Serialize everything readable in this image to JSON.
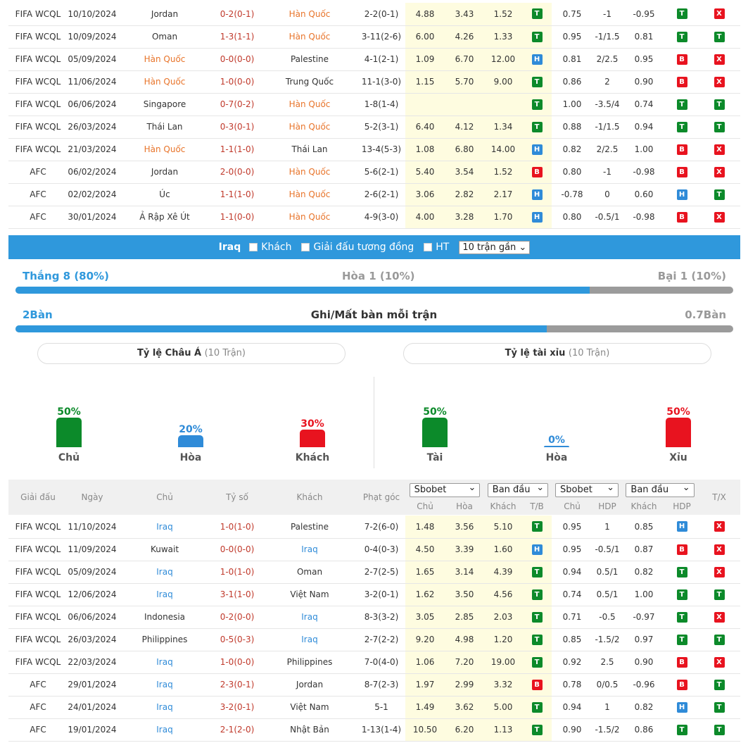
{
  "korea_matches": [
    {
      "league": "FIFA WCQL",
      "date": "10/10/2024",
      "home": "Jordan",
      "home_hl": false,
      "score": "0-2(0-1)",
      "away": "Hàn Quốc",
      "away_hl": true,
      "corner": "2-2(0-1)",
      "o1": "4.88",
      "o2": "3.43",
      "o3": "1.52",
      "tb": "T",
      "ahc": "0.75",
      "hdp": "-1",
      "ahk": "-0.95",
      "ah": "T",
      "ou": "X"
    },
    {
      "league": "FIFA WCQL",
      "date": "10/09/2024",
      "home": "Oman",
      "home_hl": false,
      "score": "1-3(1-1)",
      "away": "Hàn Quốc",
      "away_hl": true,
      "corner": "3-11(2-6)",
      "o1": "6.00",
      "o2": "4.26",
      "o3": "1.33",
      "tb": "T",
      "ahc": "0.95",
      "hdp": "-1/1.5",
      "ahk": "0.81",
      "ah": "T",
      "ou": "T"
    },
    {
      "league": "FIFA WCQL",
      "date": "05/09/2024",
      "home": "Hàn Quốc",
      "home_hl": true,
      "score": "0-0(0-0)",
      "away": "Palestine",
      "away_hl": false,
      "corner": "4-1(2-1)",
      "o1": "1.09",
      "o2": "6.70",
      "o3": "12.00",
      "tb": "H",
      "ahc": "0.81",
      "hdp": "2/2.5",
      "ahk": "0.95",
      "ah": "B",
      "ou": "X"
    },
    {
      "league": "FIFA WCQL",
      "date": "11/06/2024",
      "home": "Hàn Quốc",
      "home_hl": true,
      "score": "1-0(0-0)",
      "away": "Trung Quốc",
      "away_hl": false,
      "corner": "11-1(3-0)",
      "o1": "1.15",
      "o2": "5.70",
      "o3": "9.00",
      "tb": "T",
      "ahc": "0.86",
      "hdp": "2",
      "ahk": "0.90",
      "ah": "B",
      "ou": "X"
    },
    {
      "league": "FIFA WCQL",
      "date": "06/06/2024",
      "home": "Singapore",
      "home_hl": false,
      "score": "0-7(0-2)",
      "away": "Hàn Quốc",
      "away_hl": true,
      "corner": "1-8(1-4)",
      "o1": "",
      "o2": "",
      "o3": "",
      "tb": "T",
      "ahc": "1.00",
      "hdp": "-3.5/4",
      "ahk": "0.74",
      "ah": "T",
      "ou": "T"
    },
    {
      "league": "FIFA WCQL",
      "date": "26/03/2024",
      "home": "Thái Lan",
      "home_hl": false,
      "score": "0-3(0-1)",
      "away": "Hàn Quốc",
      "away_hl": true,
      "corner": "5-2(3-1)",
      "o1": "6.40",
      "o2": "4.12",
      "o3": "1.34",
      "tb": "T",
      "ahc": "0.88",
      "hdp": "-1/1.5",
      "ahk": "0.94",
      "ah": "T",
      "ou": "T"
    },
    {
      "league": "FIFA WCQL",
      "date": "21/03/2024",
      "home": "Hàn Quốc",
      "home_hl": true,
      "score": "1-1(1-0)",
      "away": "Thái Lan",
      "away_hl": false,
      "corner": "13-4(5-3)",
      "o1": "1.08",
      "o2": "6.80",
      "o3": "14.00",
      "tb": "H",
      "ahc": "0.82",
      "hdp": "2/2.5",
      "ahk": "1.00",
      "ah": "B",
      "ou": "X"
    },
    {
      "league": "AFC",
      "date": "06/02/2024",
      "home": "Jordan",
      "home_hl": false,
      "score": "2-0(0-0)",
      "away": "Hàn Quốc",
      "away_hl": true,
      "corner": "5-6(2-1)",
      "o1": "5.40",
      "o2": "3.54",
      "o3": "1.52",
      "tb": "B",
      "ahc": "0.80",
      "hdp": "-1",
      "ahk": "-0.98",
      "ah": "B",
      "ou": "X"
    },
    {
      "league": "AFC",
      "date": "02/02/2024",
      "home": "Úc",
      "home_hl": false,
      "score": "1-1(1-0)",
      "away": "Hàn Quốc",
      "away_hl": true,
      "corner": "2-6(2-1)",
      "o1": "3.06",
      "o2": "2.82",
      "o3": "2.17",
      "tb": "H",
      "ahc": "-0.78",
      "hdp": "0",
      "ahk": "0.60",
      "ah": "H",
      "ou": "T"
    },
    {
      "league": "AFC",
      "date": "30/01/2024",
      "home": "Ả Rập Xê Út",
      "home_hl": false,
      "score": "1-1(0-0)",
      "away": "Hàn Quốc",
      "away_hl": true,
      "corner": "4-9(3-0)",
      "o1": "4.00",
      "o2": "3.28",
      "o3": "1.70",
      "tb": "H",
      "ahc": "0.80",
      "hdp": "-0.5/1",
      "ahk": "-0.98",
      "ah": "B",
      "ou": "X"
    }
  ],
  "filter": {
    "team": "Iraq",
    "opt_away": "Khách",
    "opt_same": "Giải đấu tương đồng",
    "opt_ht": "HT",
    "select": "10 trận gần"
  },
  "stats": {
    "win": "Thắng 8 (80%)",
    "draw": "Hòa 1 (10%)",
    "loss": "Bại 1 (10%)",
    "win_fraction": 0.8,
    "gf": "2Bàn",
    "goals_title": "Ghi/Mất bàn mỗi trận",
    "ga": "0.7Bàn",
    "goals_fraction": 0.74
  },
  "asian": {
    "title": "Tỷ lệ Châu Á",
    "sub": "(10 Trận)",
    "bars": [
      {
        "pct": "50%",
        "label": "Chủ",
        "value": 50,
        "color": "#0c8a2a"
      },
      {
        "pct": "20%",
        "label": "Hòa",
        "value": 20,
        "color": "#2f8bd8"
      },
      {
        "pct": "30%",
        "label": "Khách",
        "value": 30,
        "color": "#e8131f"
      }
    ]
  },
  "ou": {
    "title": "Tỷ lệ tài xỉu",
    "sub": "(10 Trận)",
    "bars": [
      {
        "pct": "50%",
        "label": "Tài",
        "value": 50,
        "color": "#0c8a2a"
      },
      {
        "pct": "0%",
        "label": "Hòa",
        "value": 0,
        "color": "#2f8bd8"
      },
      {
        "pct": "50%",
        "label": "Xỉu",
        "value": 50,
        "color": "#e8131f"
      }
    ]
  },
  "header": {
    "league": "Giải đấu",
    "date": "Ngày",
    "home": "Chủ",
    "score": "Tỷ số",
    "away": "Khách",
    "corner": "Phạt góc",
    "sel1": "Sbobet",
    "sel2": "Ban đầu",
    "sel3": "Sbobet",
    "sel4": "Ban đầu",
    "c_chu": "Chủ",
    "c_hoa": "Hòa",
    "c_khach": "Khách",
    "c_tb": "T/B",
    "c_chu2": "Chủ",
    "c_hdp": "HDP",
    "c_khach2": "Khách",
    "c_hdp2": "HDP",
    "c_tx": "T/X"
  },
  "iraq_matches": [
    {
      "league": "FIFA WCQL",
      "date": "11/10/2024",
      "home": "Iraq",
      "home_hl": true,
      "score": "1-0(1-0)",
      "away": "Palestine",
      "away_hl": false,
      "corner": "7-2(6-0)",
      "o1": "1.48",
      "o2": "3.56",
      "o3": "5.10",
      "tb": "T",
      "ahc": "0.95",
      "hdp": "1",
      "ahk": "0.85",
      "ah": "H",
      "ou": "X"
    },
    {
      "league": "FIFA WCQL",
      "date": "11/09/2024",
      "home": "Kuwait",
      "home_hl": false,
      "score": "0-0(0-0)",
      "away": "Iraq",
      "away_hl": true,
      "corner": "0-4(0-3)",
      "o1": "4.50",
      "o2": "3.39",
      "o3": "1.60",
      "tb": "H",
      "ahc": "0.95",
      "hdp": "-0.5/1",
      "ahk": "0.87",
      "ah": "B",
      "ou": "X"
    },
    {
      "league": "FIFA WCQL",
      "date": "05/09/2024",
      "home": "Iraq",
      "home_hl": true,
      "score": "1-0(1-0)",
      "away": "Oman",
      "away_hl": false,
      "corner": "2-7(2-5)",
      "o1": "1.65",
      "o2": "3.14",
      "o3": "4.39",
      "tb": "T",
      "ahc": "0.94",
      "hdp": "0.5/1",
      "ahk": "0.82",
      "ah": "T",
      "ou": "X"
    },
    {
      "league": "FIFA WCQL",
      "date": "12/06/2024",
      "home": "Iraq",
      "home_hl": true,
      "score": "3-1(1-0)",
      "away": "Việt Nam",
      "away_hl": false,
      "corner": "3-2(0-1)",
      "o1": "1.62",
      "o2": "3.50",
      "o3": "4.56",
      "tb": "T",
      "ahc": "0.74",
      "hdp": "0.5/1",
      "ahk": "1.00",
      "ah": "T",
      "ou": "T"
    },
    {
      "league": "FIFA WCQL",
      "date": "06/06/2024",
      "home": "Indonesia",
      "home_hl": false,
      "score": "0-2(0-0)",
      "away": "Iraq",
      "away_hl": true,
      "corner": "8-3(3-2)",
      "o1": "3.05",
      "o2": "2.85",
      "o3": "2.03",
      "tb": "T",
      "ahc": "0.71",
      "hdp": "-0.5",
      "ahk": "-0.97",
      "ah": "T",
      "ou": "X"
    },
    {
      "league": "FIFA WCQL",
      "date": "26/03/2024",
      "home": "Philippines",
      "home_hl": false,
      "score": "0-5(0-3)",
      "away": "Iraq",
      "away_hl": true,
      "corner": "2-7(2-2)",
      "o1": "9.20",
      "o2": "4.98",
      "o3": "1.20",
      "tb": "T",
      "ahc": "0.85",
      "hdp": "-1.5/2",
      "ahk": "0.97",
      "ah": "T",
      "ou": "T"
    },
    {
      "league": "FIFA WCQL",
      "date": "22/03/2024",
      "home": "Iraq",
      "home_hl": true,
      "score": "1-0(0-0)",
      "away": "Philippines",
      "away_hl": false,
      "corner": "7-0(4-0)",
      "o1": "1.06",
      "o2": "7.20",
      "o3": "19.00",
      "tb": "T",
      "ahc": "0.92",
      "hdp": "2.5",
      "ahk": "0.90",
      "ah": "B",
      "ou": "X"
    },
    {
      "league": "AFC",
      "date": "29/01/2024",
      "home": "Iraq",
      "home_hl": true,
      "score": "2-3(0-1)",
      "away": "Jordan",
      "away_hl": false,
      "corner": "8-7(2-3)",
      "o1": "1.97",
      "o2": "2.99",
      "o3": "3.32",
      "tb": "B",
      "ahc": "0.78",
      "hdp": "0/0.5",
      "ahk": "-0.96",
      "ah": "B",
      "ou": "T"
    },
    {
      "league": "AFC",
      "date": "24/01/2024",
      "home": "Iraq",
      "home_hl": true,
      "score": "3-2(0-1)",
      "away": "Việt Nam",
      "away_hl": false,
      "corner": "5-1",
      "o1": "1.49",
      "o2": "3.62",
      "o3": "5.00",
      "tb": "T",
      "ahc": "0.94",
      "hdp": "1",
      "ahk": "0.82",
      "ah": "H",
      "ou": "T"
    },
    {
      "league": "AFC",
      "date": "19/01/2024",
      "home": "Iraq",
      "home_hl": true,
      "score": "2-1(2-0)",
      "away": "Nhật Bản",
      "away_hl": false,
      "corner": "1-13(1-4)",
      "o1": "10.50",
      "o2": "6.20",
      "o3": "1.13",
      "tb": "T",
      "ahc": "0.90",
      "hdp": "-1.5/2",
      "ahk": "0.86",
      "ah": "T",
      "ou": "T"
    }
  ]
}
